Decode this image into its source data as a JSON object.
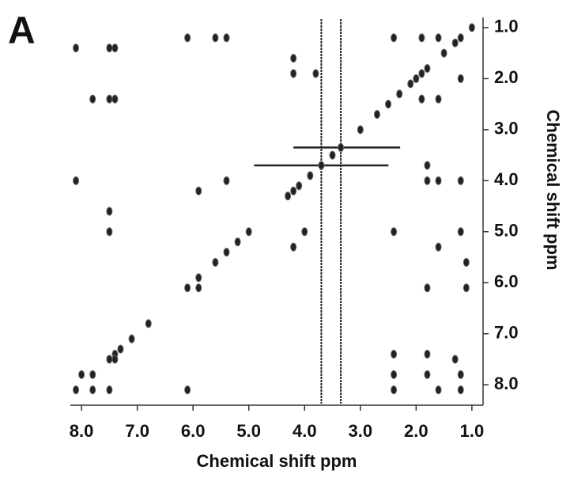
{
  "chart_data": {
    "type": "scatter",
    "panel_label": "A",
    "xlabel": "Chemical shift ppm",
    "ylabel": "Chemical shift ppm",
    "xlim": [
      8.2,
      0.8
    ],
    "ylim": [
      0.8,
      8.4
    ],
    "xticks": [
      {
        "value": 8,
        "label": "8.0"
      },
      {
        "value": 7,
        "label": "7.0"
      },
      {
        "value": 6,
        "label": "6.0"
      },
      {
        "value": 5,
        "label": "5.0"
      },
      {
        "value": 4,
        "label": "4.0"
      },
      {
        "value": 3,
        "label": "3.0"
      },
      {
        "value": 2,
        "label": "2.0"
      },
      {
        "value": 1,
        "label": "1.0"
      }
    ],
    "yticks": [
      {
        "value": 1,
        "label": "1.0"
      },
      {
        "value": 2,
        "label": "2.0"
      },
      {
        "value": 3,
        "label": "3.0"
      },
      {
        "value": 4,
        "label": "4.0"
      },
      {
        "value": 5,
        "label": "5.0"
      },
      {
        "value": 6,
        "label": "6.0"
      },
      {
        "value": 7,
        "label": "7.0"
      },
      {
        "value": 8,
        "label": "8.0"
      }
    ],
    "color": "#222222",
    "x": [
      1.0,
      1.2,
      1.3,
      1.5,
      1.8,
      1.9,
      2.0,
      2.1,
      2.3,
      2.5,
      2.7,
      3.0,
      3.35,
      3.5,
      3.7,
      3.9,
      4.1,
      4.2,
      4.3,
      5.0,
      5.2,
      5.4,
      5.6,
      5.9,
      6.1,
      6.8,
      7.1,
      7.3,
      7.4,
      7.5,
      7.8,
      8.1,
      6.1,
      5.6,
      5.4,
      4.2,
      4.2,
      3.8,
      2.4,
      1.9,
      1.6,
      1.2,
      1.6,
      1.9,
      7.8,
      7.5,
      7.4,
      8.1,
      7.5,
      7.4,
      1.8,
      1.6,
      1.2,
      1.8,
      5.9,
      5.4,
      4.2,
      4.0,
      2.4,
      1.6,
      1.2,
      1.1,
      5.9,
      1.1,
      1.8,
      2.4,
      2.4,
      2.4,
      1.8,
      1.8,
      1.3,
      1.2,
      1.2,
      1.6,
      7.5,
      7.5,
      8.1,
      6.1,
      7.8,
      7.5,
      7.4,
      8.0
    ],
    "y": [
      1.0,
      1.2,
      1.3,
      1.5,
      1.8,
      1.9,
      2.0,
      2.1,
      2.3,
      2.5,
      2.7,
      3.0,
      3.35,
      3.5,
      3.7,
      3.9,
      4.1,
      4.2,
      4.3,
      5.0,
      5.2,
      5.4,
      5.6,
      5.9,
      6.1,
      6.8,
      7.1,
      7.3,
      7.4,
      7.5,
      7.8,
      8.1,
      1.2,
      1.2,
      1.2,
      1.6,
      1.9,
      1.9,
      1.2,
      1.2,
      1.2,
      2.0,
      2.4,
      2.4,
      2.4,
      2.4,
      2.4,
      1.4,
      1.4,
      1.4,
      3.7,
      4.0,
      4.0,
      4.0,
      4.2,
      4.0,
      5.3,
      5.0,
      5.0,
      5.3,
      5.0,
      5.6,
      6.1,
      6.1,
      6.1,
      7.4,
      7.8,
      8.1,
      7.4,
      7.8,
      7.5,
      7.8,
      8.1,
      8.1,
      4.6,
      5.0,
      4.0,
      8.1,
      8.1,
      8.1,
      7.5,
      7.8
    ],
    "streaks_x": [
      3.7,
      3.35
    ],
    "streaks_y": [
      3.7,
      3.35
    ]
  }
}
